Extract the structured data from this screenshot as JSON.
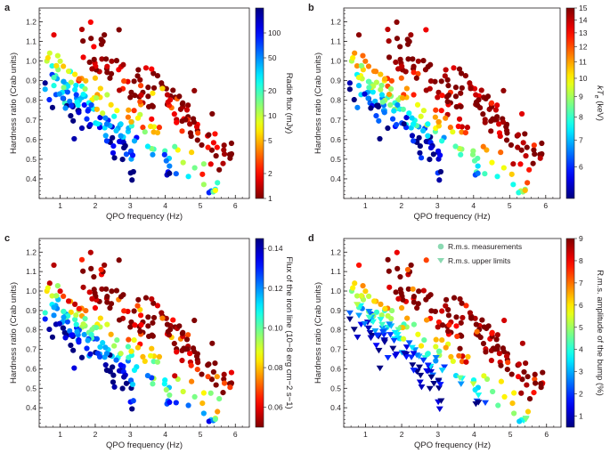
{
  "chart_data": [
    {
      "type": "scatter",
      "panel": "a",
      "xlabel": "QPO frequency (Hz)",
      "ylabel": "Hardness ratio (Crab units)",
      "xlim": [
        0.4,
        6.4
      ],
      "ylim": [
        0.3,
        1.27
      ],
      "xticks": [
        1,
        2,
        3,
        4,
        5,
        6
      ],
      "yticks": [
        0.4,
        0.5,
        0.6,
        0.7,
        0.8,
        0.9,
        1.0,
        1.1,
        1.2
      ],
      "colorbar": {
        "label": "Radio flux (mJy)",
        "scale": "log",
        "range": [
          1,
          200
        ],
        "ticks": [
          "100",
          "50",
          "20",
          "10",
          "5",
          "2",
          "1"
        ],
        "reversed_jet": true
      },
      "series": [
        {
          "marker": "circle",
          "points": [],
          "color_by": "radio_flux"
        }
      ]
    },
    {
      "type": "scatter",
      "panel": "b",
      "xlabel": "QPO frequency (Hz)",
      "ylabel": "Hardness ratio (Crab units)",
      "xlim": [
        0.4,
        6.4
      ],
      "ylim": [
        0.3,
        1.27
      ],
      "xticks": [
        1,
        2,
        3,
        4,
        5,
        6
      ],
      "yticks": [
        0.4,
        0.5,
        0.6,
        0.7,
        0.8,
        0.9,
        1.0,
        1.1,
        1.2
      ],
      "colorbar": {
        "label": "kTe (keV)",
        "label_main": "kT",
        "label_sub": "e",
        "label_unit": "(keV)",
        "scale": "log",
        "range": [
          5,
          15
        ],
        "ticks": [
          "15",
          "14",
          "13",
          "12",
          "11",
          "10",
          "9",
          "8",
          "7",
          "6"
        ]
      },
      "series": [
        {
          "marker": "circle",
          "points": [],
          "color_by": "kTe"
        }
      ]
    },
    {
      "type": "scatter",
      "panel": "c",
      "xlabel": "QPO frequency (Hz)",
      "ylabel": "Hardness ratio (Crab units)",
      "xlim": [
        0.4,
        6.4
      ],
      "ylim": [
        0.3,
        1.27
      ],
      "xticks": [
        1,
        2,
        3,
        4,
        5,
        6
      ],
      "yticks": [
        0.4,
        0.5,
        0.6,
        0.7,
        0.8,
        0.9,
        1.0,
        1.1,
        1.2
      ],
      "colorbar": {
        "label": "Flux of the iron line (10−8 erg cm−2 s−1)",
        "scale": "linear",
        "range": [
          0.05,
          0.145
        ],
        "ticks": [
          "0.14",
          "0.12",
          "0.10",
          "0.08",
          "0.06"
        ],
        "reversed_jet": true
      },
      "series": [
        {
          "marker": "circle",
          "points": [],
          "color_by": "iron_line_flux"
        }
      ]
    },
    {
      "type": "scatter",
      "panel": "d",
      "xlabel": "QPO frequency (Hz)",
      "ylabel": "Hardness ratio (Crab units)",
      "xlim": [
        0.4,
        6.4
      ],
      "ylim": [
        0.3,
        1.27
      ],
      "xticks": [
        1,
        2,
        3,
        4,
        5,
        6
      ],
      "yticks": [
        0.4,
        0.5,
        0.6,
        0.7,
        0.8,
        0.9,
        1.0,
        1.1,
        1.2
      ],
      "legend": {
        "placement": "top-right",
        "entries": [
          "R.m.s. measurements",
          "R.m.s. upper limits"
        ]
      },
      "colorbar": {
        "label": "R.m.s. amplitude of the bump (%)",
        "scale": "linear",
        "range": [
          0.5,
          9
        ],
        "ticks": [
          "9",
          "8",
          "7",
          "6",
          "5",
          "4",
          "3",
          "2",
          "1"
        ]
      },
      "series": [
        {
          "name": "R.m.s. measurements",
          "marker": "circle",
          "points": []
        },
        {
          "name": "R.m.s. upper limits",
          "marker": "triangle-down",
          "points": []
        }
      ]
    }
  ],
  "figure": {
    "panels": [
      "a",
      "b",
      "c",
      "d"
    ]
  }
}
